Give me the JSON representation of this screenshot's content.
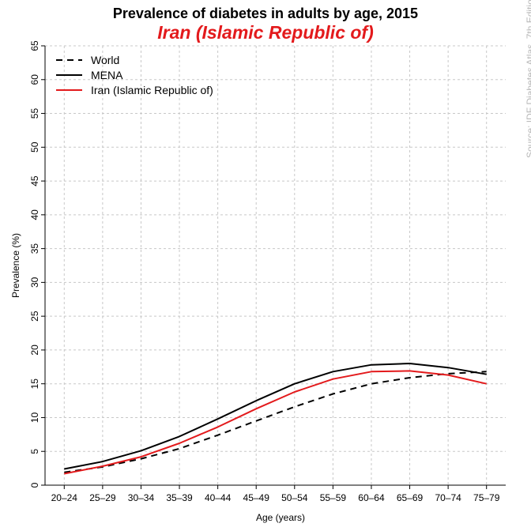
{
  "chart_data": {
    "type": "line",
    "title": "Prevalence of diabetes in adults by age, 2015",
    "subtitle": "Iran (Islamic Republic of)",
    "xlabel": "Age (years)",
    "ylabel": "Prevalence (%)",
    "categories": [
      "20–24",
      "25–29",
      "30–34",
      "35–39",
      "40–44",
      "45–49",
      "50–54",
      "55–59",
      "60–64",
      "65–69",
      "70–74",
      "75–79"
    ],
    "ylim": [
      0,
      65
    ],
    "yticks": [
      "0",
      "5",
      "10",
      "15",
      "20",
      "25",
      "30",
      "35",
      "40",
      "45",
      "50",
      "55",
      "60",
      "65"
    ],
    "grid": true,
    "legend_position": "top-left",
    "series": [
      {
        "name": "World",
        "style": "dashed",
        "color": "#000000",
        "values": [
          1.9,
          2.7,
          3.9,
          5.4,
          7.4,
          9.5,
          11.6,
          13.5,
          15.0,
          15.9,
          16.5,
          16.8
        ]
      },
      {
        "name": "MENA",
        "style": "solid",
        "color": "#000000",
        "values": [
          2.4,
          3.5,
          5.1,
          7.2,
          9.8,
          12.5,
          15.0,
          16.8,
          17.8,
          18.0,
          17.4,
          16.4
        ]
      },
      {
        "name": "Iran (Islamic Republic of)",
        "style": "solid",
        "color": "#e31a1c",
        "values": [
          1.7,
          2.8,
          4.2,
          6.2,
          8.6,
          11.3,
          13.8,
          15.7,
          16.8,
          16.9,
          16.3,
          15.0
        ]
      }
    ],
    "source": "Source: IDF Diabetes Atlas, 7th Edition, 2015"
  }
}
